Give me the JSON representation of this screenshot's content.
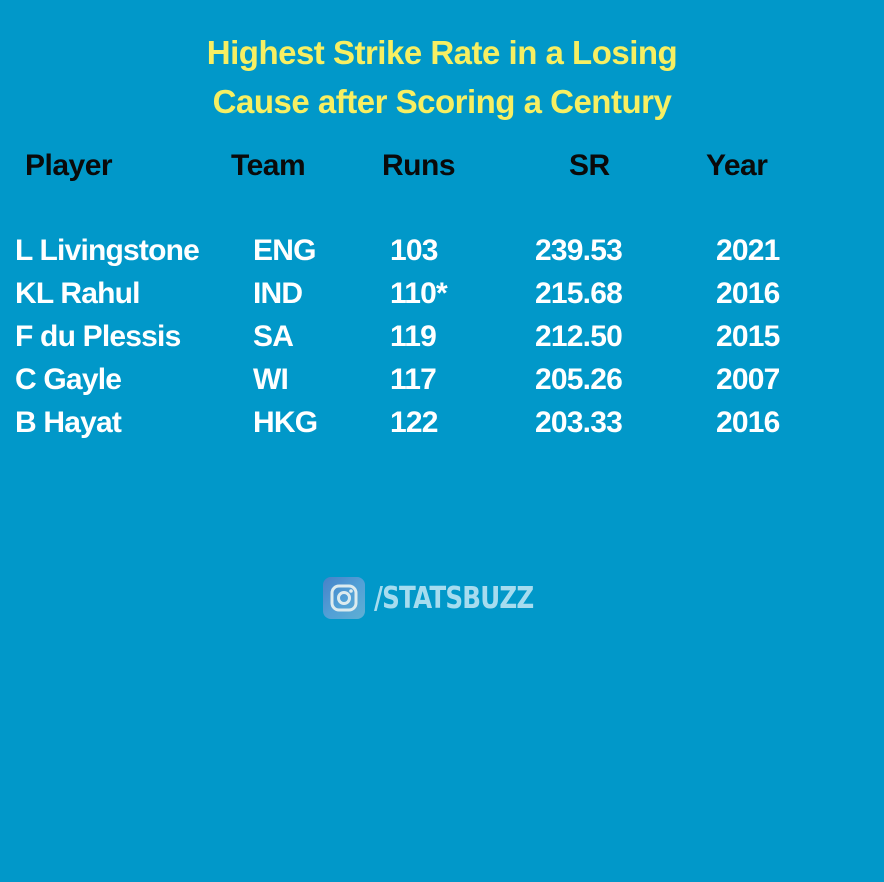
{
  "title": {
    "line1": "Highest Strike Rate in a Losing",
    "line2": "Cause after Scoring a Century"
  },
  "headers": {
    "player": "Player",
    "team": "Team",
    "runs": "Runs",
    "sr": "SR",
    "year": "Year"
  },
  "rows": [
    {
      "player": "L Livingstone",
      "team": "ENG",
      "runs": "103",
      "sr": "239.53",
      "year": "2021"
    },
    {
      "player": "KL Rahul",
      "team": "IND",
      "runs": "110*",
      "sr": "215.68",
      "year": "2016"
    },
    {
      "player": "F du Plessis",
      "team": "SA",
      "runs": "119",
      "sr": "212.50",
      "year": "2015"
    },
    {
      "player": "C Gayle",
      "team": "WI",
      "runs": "117",
      "sr": "205.26",
      "year": "2007"
    },
    {
      "player": "B Hayat",
      "team": "HKG",
      "runs": "122",
      "sr": "203.33",
      "year": "2016"
    }
  ],
  "brand": {
    "icon": "instagram-icon",
    "handle": "/STATSBUZZ"
  },
  "colors": {
    "background": "#0198c9",
    "title": "#f7ef62",
    "header": "#0a0a0a",
    "rows": "#ffffff",
    "brand": "#a6dcef"
  }
}
